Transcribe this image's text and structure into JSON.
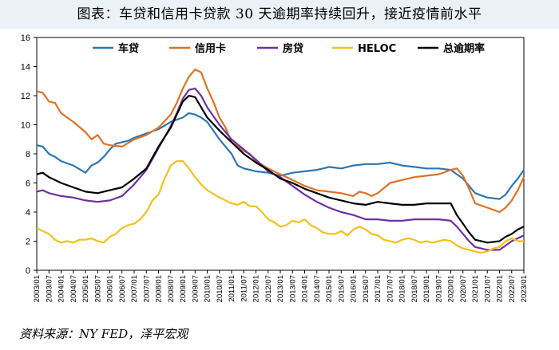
{
  "title": "图表：车贷和信用卡贷款 30 天逾期率持续回升，接近疫情前水平",
  "source": "资料来源：NY FED，泽平宏观",
  "chart_data": {
    "type": "line",
    "ylim": [
      0,
      16
    ],
    "yticks": [
      0,
      2,
      4,
      6,
      8,
      10,
      12,
      14,
      16
    ],
    "xlim": [
      2003.0,
      2023.0
    ],
    "xticks": [
      "2003/01",
      "2003/07",
      "2004/01",
      "2004/07",
      "2005/01",
      "2005/07",
      "2006/01",
      "2006/07",
      "2007/01",
      "2007/07",
      "2008/01",
      "2008/07",
      "2009/01",
      "2009/07",
      "2010/01",
      "2010/07",
      "2011/01",
      "2011/07",
      "2012/01",
      "2012/07",
      "2013/01",
      "2013/07",
      "2014/01",
      "2014/07",
      "2015/01",
      "2015/07",
      "2016/01",
      "2016/07",
      "2017/01",
      "2017/07",
      "2018/01",
      "2018/07",
      "2019/01",
      "2019/07",
      "2020/01",
      "2020/07",
      "2021/01",
      "2021/07",
      "2022/01",
      "2022/07",
      "2023/01"
    ],
    "legend_position": "top",
    "series": [
      {
        "name": "车贷",
        "color": "#2a77b4",
        "x": [
          2003.0,
          2003.25,
          2003.5,
          2003.75,
          2004.0,
          2004.5,
          2005.0,
          2005.25,
          2005.5,
          2005.75,
          2006.0,
          2006.25,
          2006.5,
          2006.75,
          2007.0,
          2007.5,
          2008.0,
          2008.5,
          2009.0,
          2009.25,
          2009.5,
          2009.75,
          2010.0,
          2010.5,
          2011.0,
          2011.25,
          2011.5,
          2011.75,
          2012.0,
          2012.5,
          2013.0,
          2013.5,
          2014.0,
          2014.5,
          2014.75,
          2015.0,
          2015.5,
          2016.0,
          2016.5,
          2017.0,
          2017.5,
          2018.0,
          2018.5,
          2019.0,
          2019.5,
          2020.0,
          2020.25,
          2020.5,
          2020.75,
          2021.0,
          2021.5,
          2022.0,
          2022.25,
          2022.5,
          2022.75,
          2023.0
        ],
        "y": [
          8.6,
          8.5,
          8.0,
          7.8,
          7.5,
          7.2,
          6.7,
          7.2,
          7.4,
          7.8,
          8.3,
          8.7,
          8.8,
          8.9,
          9.1,
          9.4,
          9.7,
          10.2,
          10.5,
          10.8,
          10.7,
          10.5,
          10.2,
          9.0,
          8.0,
          7.2,
          7.0,
          6.9,
          6.8,
          6.7,
          6.5,
          6.7,
          6.8,
          6.9,
          7.0,
          7.1,
          7.0,
          7.2,
          7.3,
          7.3,
          7.4,
          7.2,
          7.1,
          7.0,
          7.0,
          6.9,
          6.6,
          6.3,
          5.8,
          5.3,
          5.0,
          4.9,
          5.2,
          5.8,
          6.3,
          6.9
        ]
      },
      {
        "name": "信用卡",
        "color": "#e07222",
        "x": [
          2003.0,
          2003.25,
          2003.5,
          2003.75,
          2004.0,
          2004.5,
          2005.0,
          2005.25,
          2005.5,
          2005.75,
          2006.0,
          2006.5,
          2007.0,
          2007.5,
          2008.0,
          2008.5,
          2008.75,
          2009.0,
          2009.25,
          2009.5,
          2009.75,
          2010.0,
          2010.25,
          2010.5,
          2010.75,
          2011.0,
          2011.5,
          2011.75,
          2012.0,
          2012.5,
          2013.0,
          2013.5,
          2014.0,
          2014.5,
          2015.0,
          2015.5,
          2016.0,
          2016.25,
          2016.5,
          2016.75,
          2017.0,
          2017.5,
          2018.0,
          2018.5,
          2019.0,
          2019.5,
          2020.0,
          2020.25,
          2020.5,
          2020.75,
          2021.0,
          2021.5,
          2022.0,
          2022.25,
          2022.5,
          2022.75,
          2023.0
        ],
        "y": [
          12.3,
          12.2,
          11.6,
          11.5,
          10.8,
          10.2,
          9.5,
          9.0,
          9.3,
          8.7,
          8.6,
          8.5,
          9.0,
          9.3,
          9.8,
          10.7,
          11.5,
          12.5,
          13.3,
          13.8,
          13.6,
          12.5,
          11.6,
          10.5,
          9.8,
          8.8,
          8.2,
          8.0,
          7.5,
          7.0,
          6.6,
          6.2,
          5.8,
          5.5,
          5.4,
          5.3,
          5.1,
          5.4,
          5.3,
          5.1,
          5.3,
          6.0,
          6.2,
          6.4,
          6.5,
          6.6,
          6.9,
          7.0,
          6.5,
          5.6,
          4.6,
          4.3,
          4.0,
          4.3,
          4.8,
          5.5,
          6.4
        ]
      },
      {
        "name": "房贷",
        "color": "#7030a0",
        "x": [
          2003.0,
          2003.25,
          2003.5,
          2003.75,
          2004.0,
          2004.5,
          2005.0,
          2005.5,
          2006.0,
          2006.5,
          2007.0,
          2007.5,
          2008.0,
          2008.5,
          2008.75,
          2009.0,
          2009.25,
          2009.5,
          2009.75,
          2010.0,
          2010.5,
          2011.0,
          2011.5,
          2012.0,
          2012.5,
          2013.0,
          2013.5,
          2014.0,
          2014.5,
          2015.0,
          2015.5,
          2016.0,
          2016.5,
          2017.0,
          2017.5,
          2018.0,
          2018.5,
          2019.0,
          2019.5,
          2020.0,
          2020.25,
          2020.5,
          2020.75,
          2021.0,
          2021.5,
          2022.0,
          2022.25,
          2022.5,
          2022.75,
          2023.0
        ],
        "y": [
          5.4,
          5.5,
          5.3,
          5.2,
          5.1,
          5.0,
          4.8,
          4.7,
          4.8,
          5.1,
          5.9,
          6.9,
          8.4,
          9.9,
          10.8,
          11.8,
          12.4,
          12.5,
          12.0,
          11.2,
          10.0,
          9.0,
          8.3,
          7.6,
          6.8,
          6.4,
          5.8,
          5.2,
          4.7,
          4.3,
          4.0,
          3.8,
          3.5,
          3.5,
          3.4,
          3.4,
          3.5,
          3.5,
          3.5,
          3.4,
          3.0,
          2.5,
          2.0,
          1.6,
          1.4,
          1.4,
          1.7,
          2.0,
          2.2,
          2.4
        ]
      },
      {
        "name": "HELOC",
        "color": "#f2c218",
        "x": [
          2003.0,
          2003.25,
          2003.5,
          2003.75,
          2004.0,
          2004.25,
          2004.5,
          2004.75,
          2005.0,
          2005.25,
          2005.5,
          2005.75,
          2006.0,
          2006.25,
          2006.5,
          2006.75,
          2007.0,
          2007.25,
          2007.5,
          2007.75,
          2008.0,
          2008.25,
          2008.5,
          2008.75,
          2009.0,
          2009.25,
          2009.5,
          2009.75,
          2010.0,
          2010.5,
          2011.0,
          2011.25,
          2011.5,
          2011.75,
          2012.0,
          2012.25,
          2012.5,
          2012.75,
          2013.0,
          2013.25,
          2013.5,
          2013.75,
          2014.0,
          2014.25,
          2014.5,
          2014.75,
          2015.0,
          2015.25,
          2015.5,
          2015.75,
          2016.0,
          2016.25,
          2016.5,
          2016.75,
          2017.0,
          2017.25,
          2017.5,
          2017.75,
          2018.0,
          2018.25,
          2018.5,
          2018.75,
          2019.0,
          2019.25,
          2019.5,
          2019.75,
          2020.0,
          2020.25,
          2020.5,
          2020.75,
          2021.0,
          2021.25,
          2021.5,
          2021.75,
          2022.0,
          2022.25,
          2022.5,
          2022.75,
          2023.0
        ],
        "y": [
          2.9,
          2.7,
          2.5,
          2.1,
          1.9,
          2.0,
          1.9,
          2.1,
          2.1,
          2.2,
          2.0,
          1.9,
          2.3,
          2.5,
          2.9,
          3.1,
          3.2,
          3.5,
          4.0,
          4.8,
          5.2,
          6.3,
          7.2,
          7.5,
          7.5,
          7.0,
          6.4,
          5.9,
          5.5,
          5.0,
          4.6,
          4.5,
          4.7,
          4.4,
          4.4,
          4.0,
          3.5,
          3.3,
          3.0,
          3.1,
          3.4,
          3.3,
          3.5,
          3.1,
          2.9,
          2.6,
          2.5,
          2.5,
          2.7,
          2.4,
          2.8,
          3.0,
          2.8,
          2.5,
          2.4,
          2.1,
          2.0,
          1.9,
          2.1,
          2.2,
          2.1,
          1.9,
          2.0,
          1.9,
          2.0,
          2.1,
          2.0,
          1.7,
          1.5,
          1.4,
          1.3,
          1.2,
          1.3,
          1.5,
          1.6,
          2.0,
          2.2,
          2.0,
          2.0
        ]
      },
      {
        "name": "总逾期率",
        "color": "#000000",
        "x": [
          2003.0,
          2003.25,
          2003.5,
          2003.75,
          2004.0,
          2004.5,
          2005.0,
          2005.5,
          2006.0,
          2006.5,
          2007.0,
          2007.5,
          2008.0,
          2008.5,
          2008.75,
          2009.0,
          2009.25,
          2009.5,
          2009.75,
          2010.0,
          2010.5,
          2011.0,
          2011.5,
          2012.0,
          2012.5,
          2013.0,
          2013.5,
          2014.0,
          2014.5,
          2015.0,
          2015.5,
          2016.0,
          2016.5,
          2017.0,
          2017.5,
          2018.0,
          2018.5,
          2019.0,
          2019.5,
          2020.0,
          2020.25,
          2020.5,
          2020.75,
          2021.0,
          2021.5,
          2022.0,
          2022.25,
          2022.5,
          2022.75,
          2023.0
        ],
        "y": [
          6.6,
          6.7,
          6.4,
          6.2,
          6.0,
          5.7,
          5.4,
          5.3,
          5.5,
          5.7,
          6.3,
          7.0,
          8.5,
          9.8,
          10.7,
          11.6,
          12.0,
          11.9,
          11.2,
          10.5,
          9.6,
          8.8,
          8.0,
          7.4,
          6.9,
          6.3,
          6.0,
          5.6,
          5.3,
          5.0,
          4.8,
          4.6,
          4.5,
          4.7,
          4.6,
          4.5,
          4.5,
          4.6,
          4.6,
          4.6,
          3.8,
          3.2,
          2.6,
          2.1,
          1.9,
          2.0,
          2.3,
          2.5,
          2.8,
          3.0
        ]
      }
    ]
  }
}
